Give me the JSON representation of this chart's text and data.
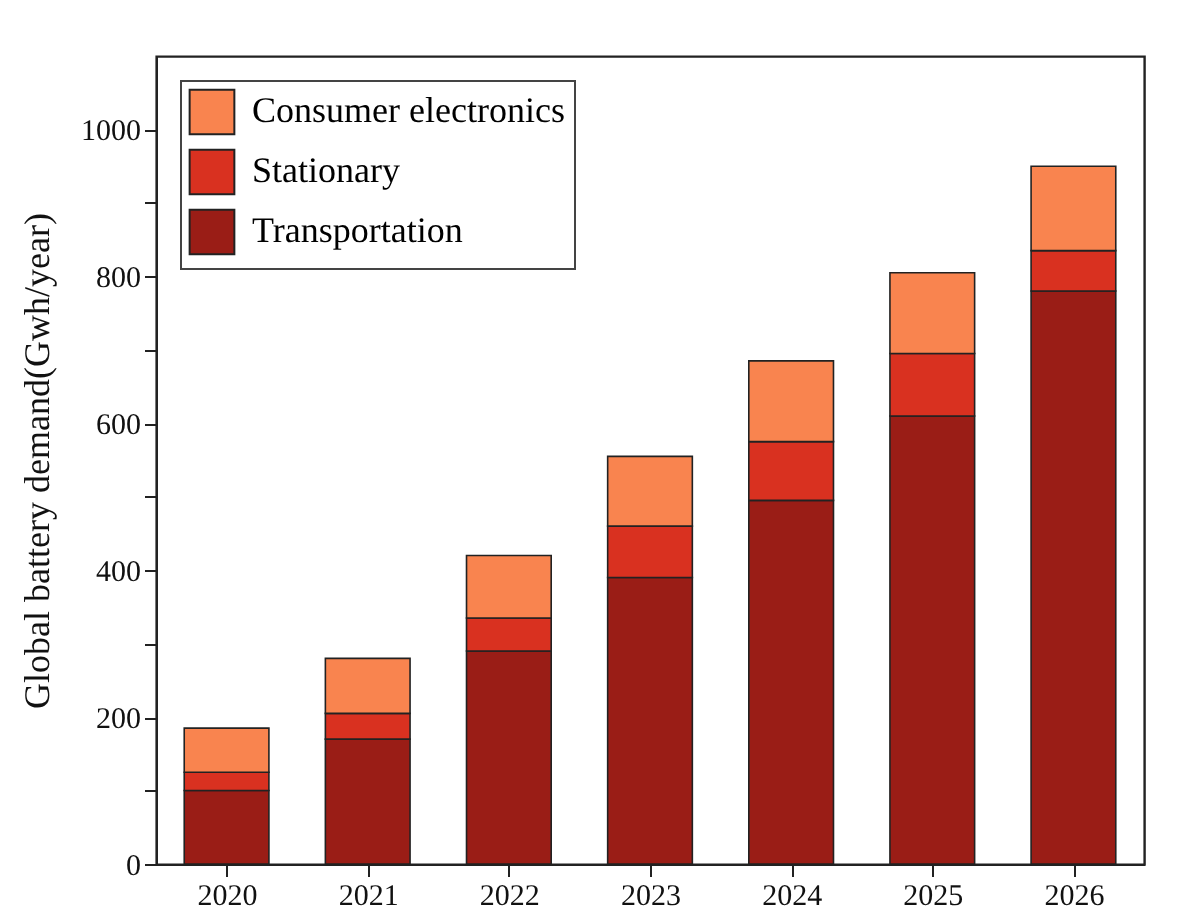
{
  "chart_data": {
    "type": "bar",
    "stacked": true,
    "ylabel": "Global battery demand(Gwh/year)",
    "categories": [
      "2020",
      "2021",
      "2022",
      "2023",
      "2024",
      "2025",
      "2026"
    ],
    "series": [
      {
        "name": "Transportation",
        "color": "#9a1d16",
        "values": [
          100,
          170,
          290,
          390,
          495,
          610,
          780
        ]
      },
      {
        "name": "Stationary",
        "color": "#d93120",
        "values": [
          25,
          35,
          45,
          70,
          80,
          85,
          55
        ]
      },
      {
        "name": "Consumer electronics",
        "color": "#f9844f",
        "values": [
          60,
          75,
          85,
          95,
          110,
          110,
          115
        ]
      }
    ],
    "ylim": [
      0,
      1100
    ],
    "yticks": [
      0,
      {
        "value": 100,
        "label": null
      },
      200,
      {
        "value": 300,
        "label": null
      },
      400,
      {
        "value": 500,
        "label": null
      },
      600,
      {
        "value": 700,
        "label": null
      },
      800,
      {
        "value": 900,
        "label": null
      },
      1000
    ],
    "grid": false,
    "legend": "top left"
  }
}
